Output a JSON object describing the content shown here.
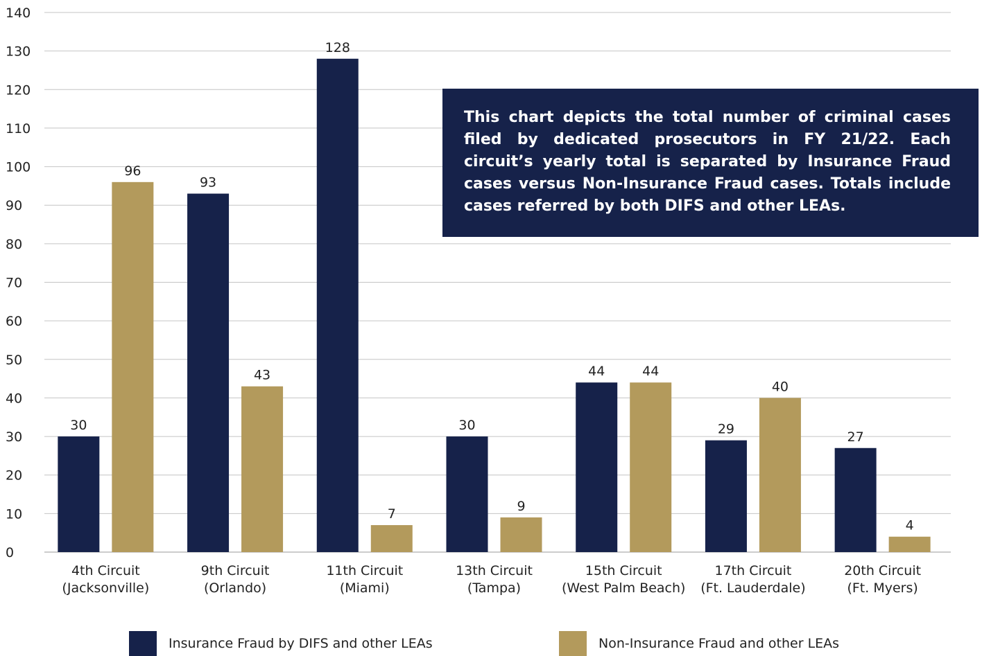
{
  "chart_data": {
    "type": "bar",
    "title": "",
    "xlabel": "",
    "ylabel": "",
    "ylim": [
      0,
      140
    ],
    "yticks": [
      0,
      10,
      20,
      30,
      40,
      50,
      60,
      70,
      80,
      90,
      100,
      110,
      120,
      130,
      140
    ],
    "grid": true,
    "categories": [
      [
        "4th Circuit",
        "(Jacksonville)"
      ],
      [
        "9th Circuit",
        "(Orlando)"
      ],
      [
        "11th Circuit",
        "(Miami)"
      ],
      [
        "13th Circuit",
        "(Tampa)"
      ],
      [
        "15th Circuit",
        "(West Palm Beach)"
      ],
      [
        "17th Circuit",
        "(Ft. Lauderdale)"
      ],
      [
        "20th Circuit",
        "(Ft. Myers)"
      ]
    ],
    "series": [
      {
        "name": "Insurance Fraud by DIFS and other LEAs",
        "color": "#16224a",
        "values": [
          30,
          93,
          128,
          30,
          44,
          29,
          27
        ]
      },
      {
        "name": "Non-Insurance Fraud and other LEAs",
        "color": "#b39a5c",
        "values": [
          96,
          43,
          7,
          9,
          44,
          40,
          4
        ]
      }
    ],
    "legend_position": "bottom",
    "annotation": "This chart depicts the total number of criminal cases filed by dedicated prosecutors in FY 21/22. Each circuit’s yearly total is separated by Insurance Fraud cases versus Non-Insurance Fraud cases. Totals include cases referred by both DIFS and other LEAs."
  }
}
